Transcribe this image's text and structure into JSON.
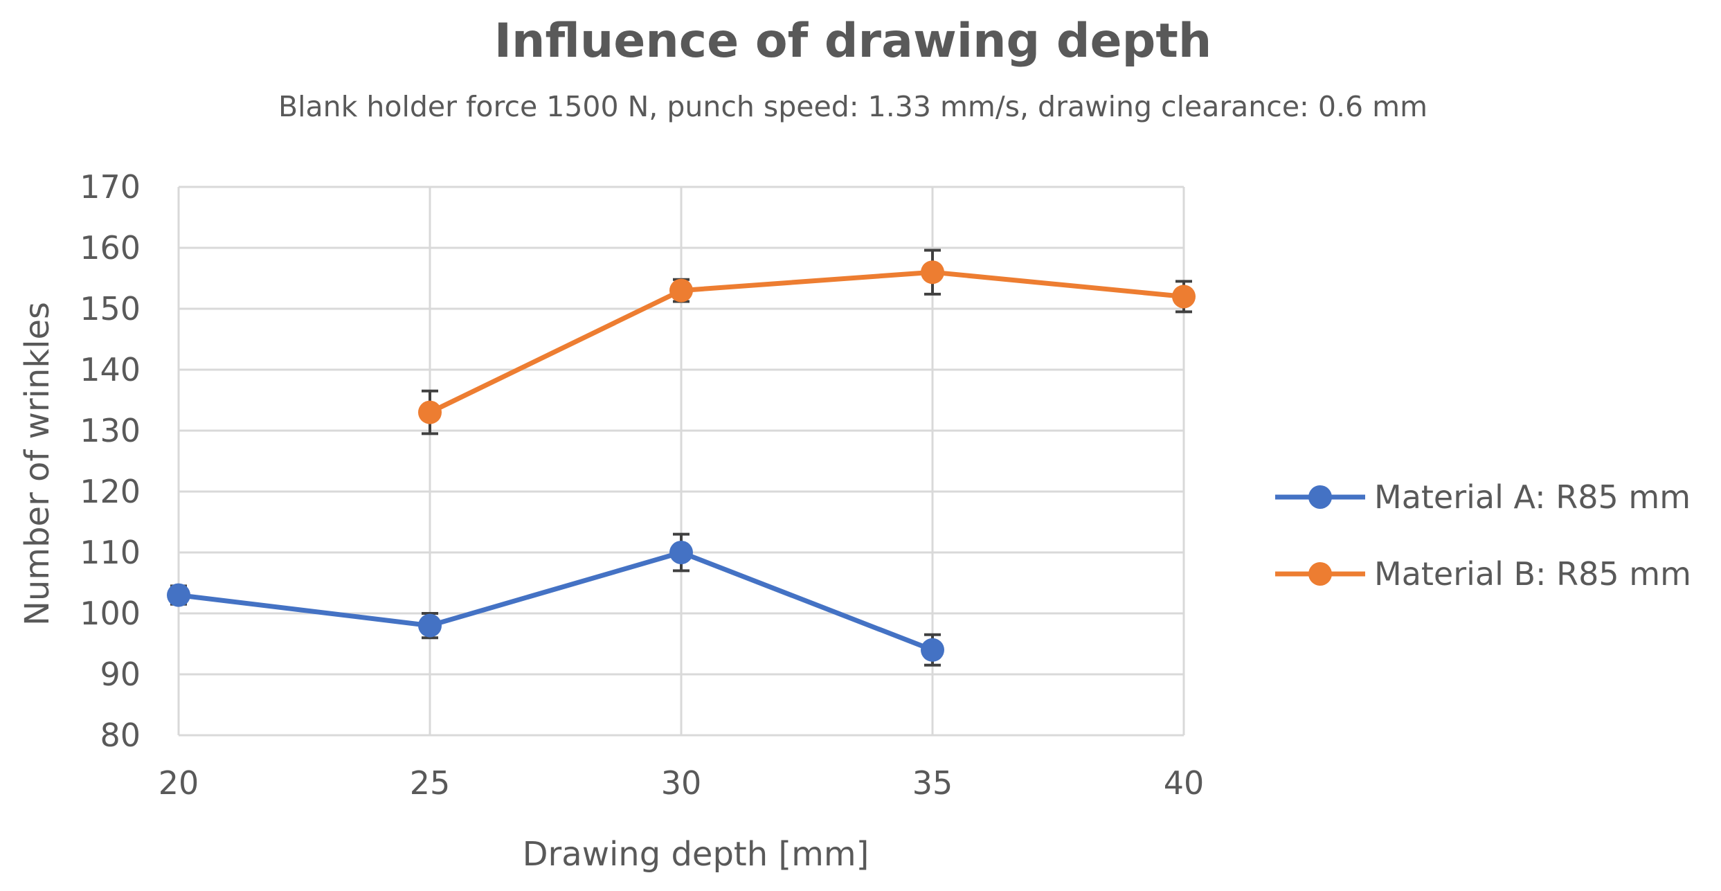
{
  "chart_data": {
    "type": "line",
    "title": "Influence of drawing depth",
    "subtitle": "Blank holder force 1500 N, punch speed: 1.33 mm/s, drawing clearance: 0.6 mm",
    "xlabel": "Drawing depth [mm]",
    "ylabel": "Number of wrinkles",
    "xlim": [
      20,
      40
    ],
    "ylim": [
      80,
      170
    ],
    "xticks": [
      20,
      25,
      30,
      35,
      40
    ],
    "yticks": [
      80,
      90,
      100,
      110,
      120,
      130,
      140,
      150,
      160,
      170
    ],
    "grid": true,
    "legend_position": "right",
    "series": [
      {
        "name": "Material A: R85 mm",
        "color": "#4472C4",
        "x": [
          20,
          25,
          30,
          35
        ],
        "values": [
          103,
          98,
          110,
          94
        ],
        "error": [
          1.5,
          2,
          3,
          2.5
        ]
      },
      {
        "name": "Material B: R85 mm",
        "color": "#ED7D31",
        "x": [
          25,
          30,
          35,
          40
        ],
        "values": [
          133,
          153,
          156,
          152
        ],
        "error": [
          3.5,
          1.8,
          3.6,
          2.5
        ]
      }
    ]
  }
}
